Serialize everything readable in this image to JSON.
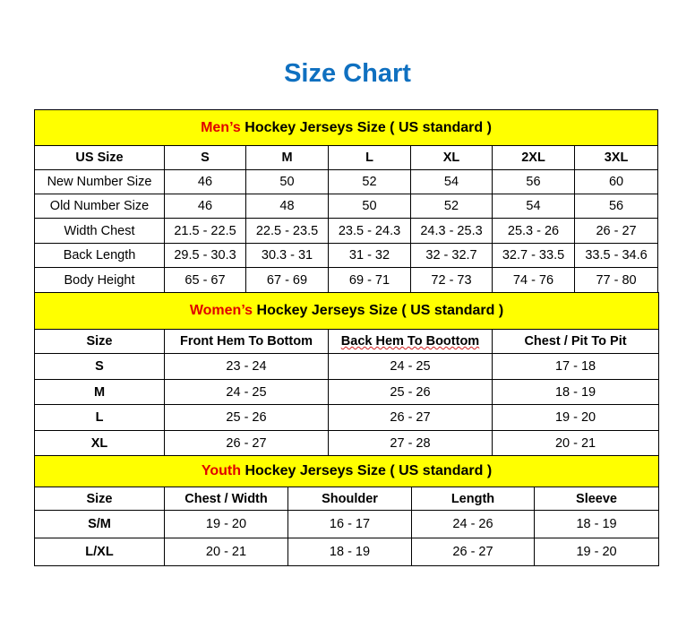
{
  "title": "Size Chart",
  "colors": {
    "title": "#0f70c0",
    "header_bg": "#ffff00",
    "highlight": "#e00000"
  },
  "men": {
    "heading_highlight": "Men’s",
    "heading_rest": " Hockey Jerseys Size ( US standard )",
    "columns": [
      "US Size",
      "S",
      "M",
      "L",
      "XL",
      "2XL",
      "3XL"
    ],
    "rows": [
      [
        "New Number Size",
        "46",
        "50",
        "52",
        "54",
        "56",
        "60"
      ],
      [
        "Old Number Size",
        "46",
        "48",
        "50",
        "52",
        "54",
        "56"
      ],
      [
        "Width Chest",
        "21.5 - 22.5",
        "22.5 - 23.5",
        "23.5 - 24.3",
        "24.3 - 25.3",
        "25.3 - 26",
        "26 - 27"
      ],
      [
        "Back Length",
        "29.5 - 30.3",
        "30.3 - 31",
        "31 - 32",
        "32 - 32.7",
        "32.7 - 33.5",
        "33.5 - 34.6"
      ],
      [
        "Body Height",
        "65 - 67",
        "67 - 69",
        "69 - 71",
        "72 - 73",
        "74 - 76",
        "77 - 80"
      ]
    ]
  },
  "women": {
    "heading_highlight": "Women’s",
    "heading_rest": " Hockey Jerseys Size ( US standard )",
    "columns": [
      "Size",
      "Front Hem To Bottom",
      "Back Hem To Boottom",
      "Chest / Pit To Pit"
    ],
    "rows": [
      [
        "S",
        "23 - 24",
        "24 - 25",
        "17 - 18"
      ],
      [
        "M",
        "24 - 25",
        "25 - 26",
        "18 - 19"
      ],
      [
        "L",
        "25 - 26",
        "26 - 27",
        "19 - 20"
      ],
      [
        "XL",
        "26 - 27",
        "27 - 28",
        "20 - 21"
      ]
    ]
  },
  "youth": {
    "heading_highlight": "Youth",
    "heading_rest": " Hockey Jerseys Size ( US standard )",
    "columns": [
      "Size",
      "Chest / Width",
      "Shoulder",
      "Length",
      "Sleeve"
    ],
    "rows": [
      [
        "S/M",
        "19 - 20",
        "16 - 17",
        "24 - 26",
        "18 - 19"
      ],
      [
        "L/XL",
        "20 - 21",
        "18 - 19",
        "26 - 27",
        "19 - 20"
      ]
    ]
  }
}
